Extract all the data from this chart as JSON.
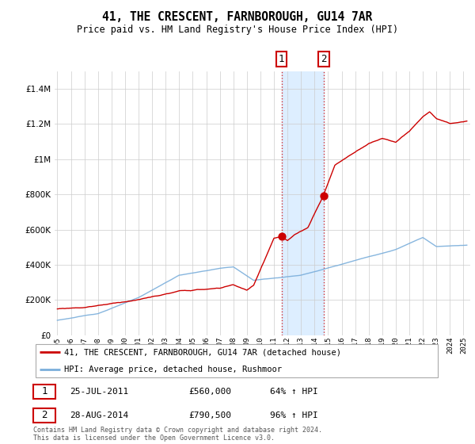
{
  "title": "41, THE CRESCENT, FARNBOROUGH, GU14 7AR",
  "subtitle": "Price paid vs. HM Land Registry's House Price Index (HPI)",
  "legend_line1": "41, THE CRESCENT, FARNBOROUGH, GU14 7AR (detached house)",
  "legend_line2": "HPI: Average price, detached house, Rushmoor",
  "transaction1_date": "25-JUL-2011",
  "transaction1_price": "£560,000",
  "transaction1_hpi": "64% ↑ HPI",
  "transaction2_date": "28-AUG-2014",
  "transaction2_price": "£790,500",
  "transaction2_hpi": "96% ↑ HPI",
  "footer": "Contains HM Land Registry data © Crown copyright and database right 2024.\nThis data is licensed under the Open Government Licence v3.0.",
  "hpi_color": "#7aaedb",
  "price_color": "#cc0000",
  "highlight_color": "#ddeeff",
  "marker_color": "#cc0000",
  "ylim": [
    0,
    1500000
  ],
  "yticks": [
    0,
    200000,
    400000,
    600000,
    800000,
    1000000,
    1200000,
    1400000
  ],
  "transaction1_x": 2011.56,
  "transaction2_x": 2014.66,
  "transaction1_y": 560000,
  "transaction2_y": 790500,
  "highlight_x_start": 2011.56,
  "highlight_x_end": 2014.66,
  "xmin": 1994.8,
  "xmax": 2025.5
}
